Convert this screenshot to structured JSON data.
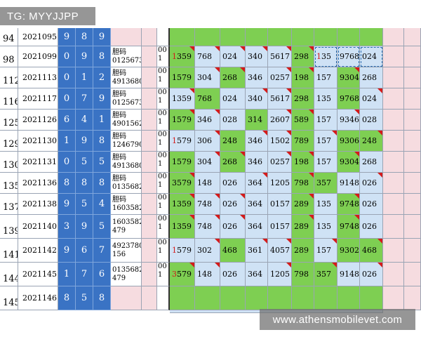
{
  "overlay": {
    "tg_label": "TG: MYYJJPP",
    "site_label": "www.athensmobilevet.com"
  },
  "colors": {
    "digit_blue": "#3a73c4",
    "green": "#7ecf52",
    "light_blue": "#cfe2f5",
    "pink": "#f6dce0",
    "mark_red": "#d41a1a"
  },
  "rows": [
    {
      "idx": "94",
      "issue": "2021095",
      "digits": [
        "9",
        "8",
        "9"
      ],
      "dan": "",
      "code": "",
      "cells": []
    },
    {
      "idx": "98",
      "issue": "2021099",
      "digits": [
        "0",
        "9",
        "8"
      ],
      "dan": "胆码 0125673",
      "code": "00 1",
      "cells": [
        [
          "1",
          "359"
        ],
        [
          "",
          "768"
        ],
        [
          "",
          "024"
        ],
        [
          "",
          "340"
        ],
        [
          "",
          "5617"
        ],
        [
          "",
          "298"
        ],
        [
          "1",
          "35"
        ],
        [
          "",
          "9768"
        ],
        [
          "",
          "024"
        ]
      ]
    },
    {
      "idx": "112",
      "issue": "2021113",
      "digits": [
        "0",
        "1",
        "2"
      ],
      "dan": "胆码 4913680",
      "code": "00 1",
      "cells": [
        [
          "",
          "1579"
        ],
        [
          "",
          "304"
        ],
        [
          "",
          "268"
        ],
        [
          "",
          "346"
        ],
        [
          "",
          "0257"
        ],
        [
          "",
          "198"
        ],
        [
          "",
          "157"
        ],
        [
          "",
          "9304"
        ],
        [
          "",
          "268"
        ]
      ]
    },
    {
      "idx": "116",
      "issue": "2021117",
      "digits": [
        "0",
        "7",
        "9"
      ],
      "dan": "胆码 0125673",
      "code": "00 1",
      "cells": [
        [
          "",
          "1359"
        ],
        [
          "",
          "768"
        ],
        [
          "",
          "024"
        ],
        [
          "",
          "340"
        ],
        [
          "",
          "5617"
        ],
        [
          "",
          "298"
        ],
        [
          "",
          "135"
        ],
        [
          "",
          "9768"
        ],
        [
          "",
          "024"
        ]
      ]
    },
    {
      "idx": "125",
      "issue": "2021126",
      "digits": [
        "6",
        "4",
        "1"
      ],
      "dan": "胆码 4901562",
      "code": "00 1",
      "cells": [
        [
          "",
          "1579"
        ],
        [
          "",
          "346"
        ],
        [
          "",
          "028"
        ],
        [
          "",
          "314"
        ],
        [
          "",
          "2607"
        ],
        [
          "",
          "589"
        ],
        [
          "",
          "157"
        ],
        [
          "",
          "9346"
        ],
        [
          "",
          "028"
        ]
      ]
    },
    {
      "idx": "129",
      "issue": "2021130",
      "digits": [
        "1",
        "9",
        "8"
      ],
      "dan": "胆码 1246790",
      "code": "00 1",
      "cells": [
        [
          "1",
          "579"
        ],
        [
          "",
          "306"
        ],
        [
          "",
          "248"
        ],
        [
          "",
          "346"
        ],
        [
          "",
          "1502"
        ],
        [
          "",
          "789"
        ],
        [
          "",
          "157"
        ],
        [
          "",
          "9306"
        ],
        [
          "",
          "248"
        ]
      ]
    },
    {
      "idx": "130",
      "issue": "2021131",
      "digits": [
        "0",
        "5",
        "5"
      ],
      "dan": "胆码 4913680",
      "code": "00 1",
      "cells": [
        [
          "",
          "1579"
        ],
        [
          "",
          "304"
        ],
        [
          "",
          "268"
        ],
        [
          "",
          "346"
        ],
        [
          "",
          "0257"
        ],
        [
          "",
          "198"
        ],
        [
          "",
          "157"
        ],
        [
          "",
          "9304"
        ],
        [
          "",
          "268"
        ]
      ]
    },
    {
      "idx": "135",
      "issue": "2021136",
      "digits": [
        "8",
        "8",
        "8"
      ],
      "dan": "胆码 0135682",
      "code": "00 1",
      "cells": [
        [
          "",
          "3579"
        ],
        [
          "",
          "148"
        ],
        [
          "",
          "026"
        ],
        [
          "",
          "364"
        ],
        [
          "",
          "1205"
        ],
        [
          "",
          "798"
        ],
        [
          "",
          "357"
        ],
        [
          "",
          "9148"
        ],
        [
          "",
          "026"
        ]
      ]
    },
    {
      "idx": "137",
      "issue": "2021138",
      "digits": [
        "9",
        "5",
        "4"
      ],
      "dan": "胆码 1603582",
      "code": "00 1",
      "cells": [
        [
          "",
          "1359"
        ],
        [
          "",
          "748"
        ],
        [
          "",
          "026"
        ],
        [
          "",
          "364"
        ],
        [
          "",
          "0157"
        ],
        [
          "",
          "289"
        ],
        [
          "",
          "135"
        ],
        [
          "",
          "9748"
        ],
        [
          "",
          "026"
        ]
      ]
    },
    {
      "idx": "139",
      "issue": "2021140",
      "digits": [
        "3",
        "9",
        "5"
      ],
      "dan": "1603582 479",
      "code": "00 1",
      "cells": [
        [
          "",
          "1359"
        ],
        [
          "",
          "748"
        ],
        [
          "",
          "026"
        ],
        [
          "",
          "364"
        ],
        [
          "",
          "0157"
        ],
        [
          "",
          "289"
        ],
        [
          "",
          "135"
        ],
        [
          "",
          "9748"
        ],
        [
          "",
          "026"
        ]
      ]
    },
    {
      "idx": "141",
      "issue": "2021142",
      "digits": [
        "9",
        "6",
        "7"
      ],
      "dan": "4923780 156",
      "code": "00 1",
      "cells": [
        [
          "1",
          "579"
        ],
        [
          "",
          "302"
        ],
        [
          "",
          "468"
        ],
        [
          "",
          "361"
        ],
        [
          "",
          "4057"
        ],
        [
          "",
          "289"
        ],
        [
          "",
          "157"
        ],
        [
          "",
          "9302"
        ],
        [
          "",
          "468"
        ]
      ]
    },
    {
      "idx": "144",
      "issue": "2021145",
      "digits": [
        "1",
        "7",
        "6"
      ],
      "dan": "0135682 479",
      "code": "00 1",
      "cells": [
        [
          "3",
          "579"
        ],
        [
          "",
          "148"
        ],
        [
          "",
          "026"
        ],
        [
          "",
          "364"
        ],
        [
          "",
          "1205"
        ],
        [
          "",
          "798"
        ],
        [
          "",
          "357"
        ],
        [
          "",
          "9148"
        ],
        [
          "",
          "026"
        ]
      ]
    },
    {
      "idx": "145",
      "issue": "2021146",
      "digits": [
        "8",
        "5",
        "8"
      ],
      "dan": "",
      "code": "",
      "cells": []
    }
  ]
}
